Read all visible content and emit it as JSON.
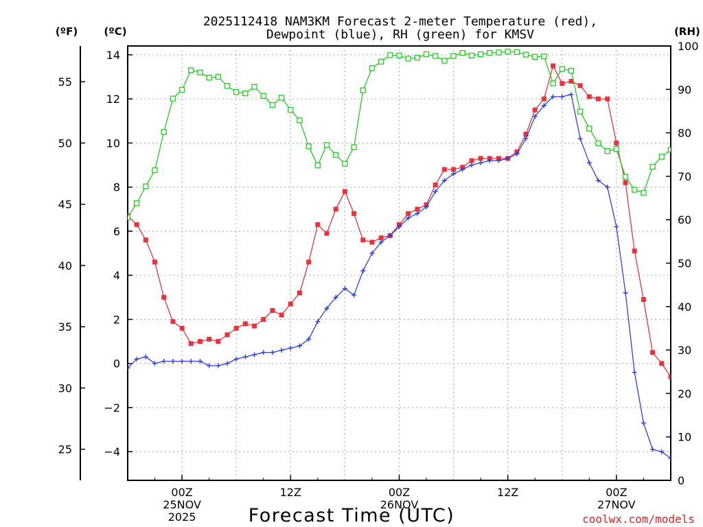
{
  "chart_data": {
    "type": "line",
    "title": "2025112418 NAM3KM Forecast 2-meter Temperature (red),",
    "subtitle": "Dewpoint (blue), RH (green) for KMSV",
    "xlabel": "Forecast Time (UTC)",
    "units_left_f": "(ºF)",
    "units_left_c": "(ºC)",
    "units_right": "(RH)",
    "watermark": "coolwx.com/models",
    "x_hours": [
      0,
      1,
      2,
      3,
      4,
      5,
      6,
      7,
      8,
      9,
      10,
      11,
      12,
      13,
      14,
      15,
      16,
      17,
      18,
      19,
      20,
      21,
      22,
      23,
      24,
      25,
      26,
      27,
      28,
      29,
      30,
      31,
      32,
      33,
      34,
      35,
      36,
      37,
      38,
      39,
      40,
      41,
      42,
      43,
      44,
      45,
      46,
      47,
      48,
      49,
      50,
      51,
      52,
      53,
      54,
      55,
      56,
      57,
      58,
      59,
      60
    ],
    "xlim": [
      0,
      60
    ],
    "ylim_c": [
      -5.3,
      14.4
    ],
    "ylim_rh": [
      0,
      100
    ],
    "x_ticks": [
      {
        "hour": 6,
        "lines": [
          "00Z",
          "25NOV",
          "2025"
        ]
      },
      {
        "hour": 18,
        "lines": [
          "12Z"
        ]
      },
      {
        "hour": 30,
        "lines": [
          "00Z",
          "26NOV"
        ]
      },
      {
        "hour": 42,
        "lines": [
          "12Z"
        ]
      },
      {
        "hour": 54,
        "lines": [
          "00Z",
          "27NOV"
        ]
      }
    ],
    "y_ticks_c": [
      -4,
      -2,
      0,
      2,
      4,
      6,
      8,
      10,
      12,
      14
    ],
    "y_tick_labels_c": [
      "−4",
      "−2",
      "0",
      "2",
      "4",
      "6",
      "8",
      "10",
      "12",
      "14"
    ],
    "y_ticks_f": [
      25,
      30,
      35,
      40,
      45,
      50,
      55
    ],
    "y_ticks_rh": [
      0,
      10,
      20,
      30,
      40,
      50,
      60,
      70,
      80,
      90,
      100
    ],
    "series": [
      {
        "name": "Temperature",
        "axis": "c",
        "color": "#e8323c",
        "marker": "filled-square",
        "values": [
          6.7,
          6.3,
          5.6,
          4.6,
          3.0,
          1.9,
          1.6,
          0.9,
          1.0,
          1.1,
          1.0,
          1.3,
          1.6,
          1.8,
          1.7,
          2.0,
          2.4,
          2.2,
          2.7,
          3.2,
          4.6,
          6.3,
          5.9,
          7.0,
          7.8,
          6.8,
          5.6,
          5.5,
          5.7,
          5.8,
          6.3,
          6.8,
          7.0,
          7.2,
          8.1,
          8.8,
          8.8,
          8.9,
          9.2,
          9.3,
          9.3,
          9.3,
          9.3,
          9.6,
          10.4,
          11.5,
          12.0,
          13.5,
          12.7,
          12.8,
          12.6,
          12.1,
          12.0,
          12.0,
          10.0,
          8.2,
          5.1,
          2.9,
          0.5,
          0.0,
          -0.6
        ]
      },
      {
        "name": "Dewpoint",
        "axis": "c",
        "color": "#2e3fe0",
        "marker": "plus",
        "values": [
          -0.2,
          0.2,
          0.3,
          0.0,
          0.1,
          0.1,
          0.1,
          0.1,
          0.1,
          -0.1,
          -0.1,
          0.0,
          0.2,
          0.3,
          0.4,
          0.5,
          0.5,
          0.6,
          0.7,
          0.8,
          1.1,
          1.9,
          2.5,
          3.0,
          3.4,
          3.1,
          4.2,
          5.0,
          5.5,
          5.8,
          6.2,
          6.6,
          6.8,
          7.1,
          7.8,
          8.3,
          8.6,
          8.8,
          9.0,
          9.1,
          9.2,
          9.2,
          9.3,
          9.5,
          10.2,
          11.2,
          11.7,
          12.1,
          12.1,
          12.2,
          10.2,
          9.1,
          8.3,
          8.0,
          6.2,
          3.2,
          -0.4,
          -2.7,
          -3.9,
          -4.0,
          -4.3
        ]
      },
      {
        "name": "RH",
        "axis": "rh",
        "color": "#22cc22",
        "marker": "open-square",
        "values": [
          60.5,
          63.8,
          67.7,
          71.4,
          80.2,
          87.9,
          89.9,
          94.4,
          93.9,
          92.7,
          92.9,
          90.8,
          89.4,
          89.1,
          90.6,
          88.5,
          86.4,
          88.1,
          85.3,
          82.9,
          76.9,
          72.5,
          77.2,
          74.9,
          72.9,
          76.7,
          89.8,
          94.9,
          96.4,
          97.9,
          97.8,
          97.1,
          97.3,
          98.1,
          97.7,
          96.6,
          97.7,
          98.4,
          97.8,
          98.1,
          98.4,
          98.5,
          98.7,
          98.6,
          98.0,
          97.5,
          97.6,
          91.4,
          94.7,
          94.3,
          84.9,
          81.0,
          77.6,
          75.8,
          76.3,
          69.9,
          66.9,
          66.2,
          72.2,
          74.5,
          76.1
        ]
      }
    ]
  }
}
